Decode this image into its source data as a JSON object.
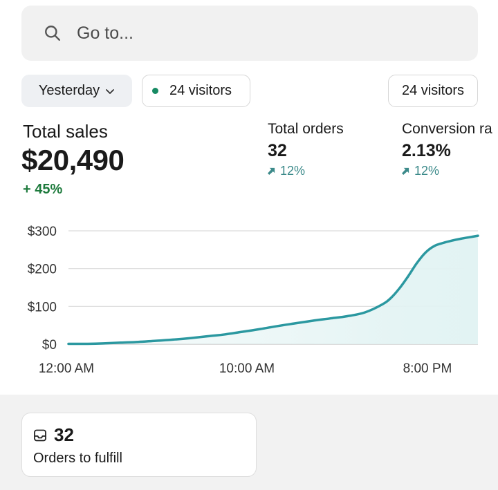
{
  "search": {
    "placeholder": "Go to..."
  },
  "filters": {
    "date_range": "Yesterday",
    "live_visitors": "24 visitors",
    "visitors_right": "24 visitors"
  },
  "metrics": {
    "total_sales": {
      "label": "Total sales",
      "value": "$20,490",
      "change": "+ 45%"
    },
    "total_orders": {
      "label": "Total orders",
      "value": "32",
      "change": "12%"
    },
    "conversion_rate": {
      "label": "Conversion ra",
      "value": "2.13%",
      "change": "12%"
    }
  },
  "colors": {
    "accent_line": "#2b98a0",
    "positive": "#1d7a3c",
    "live_dot": "#178a63"
  },
  "chart_data": {
    "type": "area",
    "title": "",
    "xlabel": "",
    "ylabel": "",
    "x_tick_labels": [
      "12:00 AM",
      "10:00 AM",
      "8:00 PM"
    ],
    "y_tick_labels": [
      "$0",
      "$100",
      "$200",
      "$300"
    ],
    "y_ticks": [
      0,
      100,
      200,
      300
    ],
    "ylim": [
      0,
      300
    ],
    "xlim": [
      0,
      23.5
    ],
    "grid": true,
    "series": [
      {
        "x": [
          0,
          1,
          2,
          3,
          4,
          5,
          6,
          7,
          8,
          9,
          10,
          11,
          12,
          13,
          14,
          15,
          16,
          17,
          18,
          18.5,
          19,
          19.5,
          20,
          20.5,
          21,
          21.5,
          22,
          22.5,
          23,
          23.5
        ],
        "values": [
          1,
          1,
          2,
          4,
          6,
          9,
          12,
          16,
          21,
          26,
          33,
          40,
          48,
          55,
          62,
          68,
          74,
          84,
          105,
          122,
          148,
          180,
          215,
          243,
          260,
          268,
          274,
          279,
          283,
          287
        ]
      }
    ]
  },
  "fulfillment": {
    "count": "32",
    "label": "Orders to fulfill"
  }
}
